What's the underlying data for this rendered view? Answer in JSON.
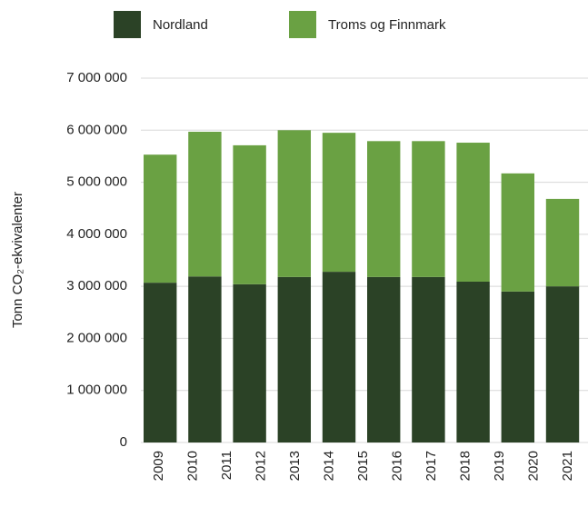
{
  "chart_data": {
    "type": "stacked_bar",
    "y_label": "Tonn CO₂-ekvivalenter",
    "categories": [
      "2009",
      "2010",
      "2011",
      "2012",
      "2013",
      "2014",
      "2015",
      "2016",
      "2017",
      "2018",
      "2019",
      "2020",
      "2021"
    ],
    "series": [
      {
        "name": "Nordland",
        "color": "#2b4226",
        "values": [
          3070000,
          3190000,
          3040000,
          3180000,
          3280000,
          3180000,
          3180000,
          3090000,
          2900000,
          3000000,
          null,
          null,
          null
        ]
      },
      {
        "name": "Troms og Finnmark",
        "color": "#6aa143",
        "values": [
          2460000,
          2780000,
          2670000,
          2820000,
          2670000,
          2610000,
          2610000,
          2670000,
          2270000,
          1680000,
          null,
          null,
          null
        ]
      }
    ],
    "ylim": [
      0,
      7000000
    ],
    "yticks": [
      0,
      {
        "value": 1000000,
        "label": "1 000 000"
      },
      {
        "value": 2000000,
        "label": "2 000 000"
      },
      {
        "value": 3000000,
        "label": "3 000 000"
      },
      {
        "value": 4000000,
        "label": "4 000 000"
      },
      {
        "value": 5000000,
        "label": "5 000 000"
      },
      {
        "value": 6000000,
        "label": "6 000 000"
      },
      {
        "value": 7000000,
        "label": "7 000 000"
      }
    ],
    "grid": true,
    "legend": "top"
  }
}
